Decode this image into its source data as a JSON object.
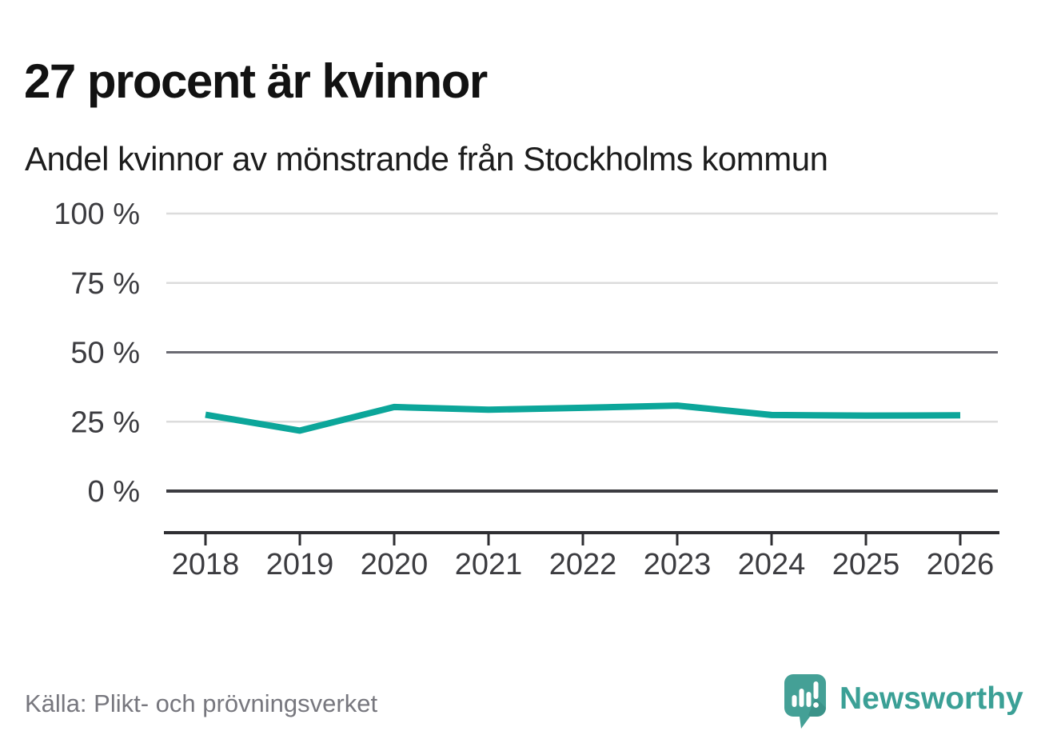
{
  "header": {
    "title": "27 procent är kvinnor",
    "subtitle": "Andel kvinnor av mönstrande från Stockholms kommun"
  },
  "footer": {
    "source": "Källa: Plikt- och prövningsverket",
    "brand_name": "Newsworthy"
  },
  "colors": {
    "line": "#0CA69A",
    "grid_light": "#dcdcdc",
    "grid_medium": "#6a6a72",
    "grid_zero": "#3c3c41",
    "axis": "#2e2e32",
    "tick_label": "#3c3c40",
    "logo_teal": "#44a096",
    "logo_shade": "#35897f",
    "wordmark_teal": "#3ba096"
  },
  "chart_data": {
    "type": "line",
    "title": "27 procent är kvinnor",
    "subtitle": "Andel kvinnor av mönstrande från Stockholms kommun",
    "categories": [
      "2018",
      "2019",
      "2020",
      "2021",
      "2022",
      "2023",
      "2024",
      "2025",
      "2026"
    ],
    "series": [
      {
        "name": "Andel kvinnor av mönstrande från Stockholms kommun",
        "values": [
          27.5,
          21.8,
          30.3,
          29.3,
          30.0,
          30.8,
          27.4,
          27.2,
          27.3
        ]
      }
    ],
    "unit": "%",
    "ylim": [
      0,
      100
    ],
    "grid": "horizontal",
    "legend": "none",
    "y_axis": {
      "ticks": [
        {
          "value": 0,
          "label": "0 %",
          "emphasis": "zero"
        },
        {
          "value": 25,
          "label": "25 %",
          "emphasis": "light"
        },
        {
          "value": 50,
          "label": "50 %",
          "emphasis": "medium"
        },
        {
          "value": 75,
          "label": "75 %",
          "emphasis": "light"
        },
        {
          "value": 100,
          "label": "100 %",
          "emphasis": "light"
        }
      ]
    },
    "x_axis": {
      "ticks": [
        "2018",
        "2019",
        "2020",
        "2021",
        "2022",
        "2023",
        "2024",
        "2025",
        "2026"
      ]
    }
  }
}
